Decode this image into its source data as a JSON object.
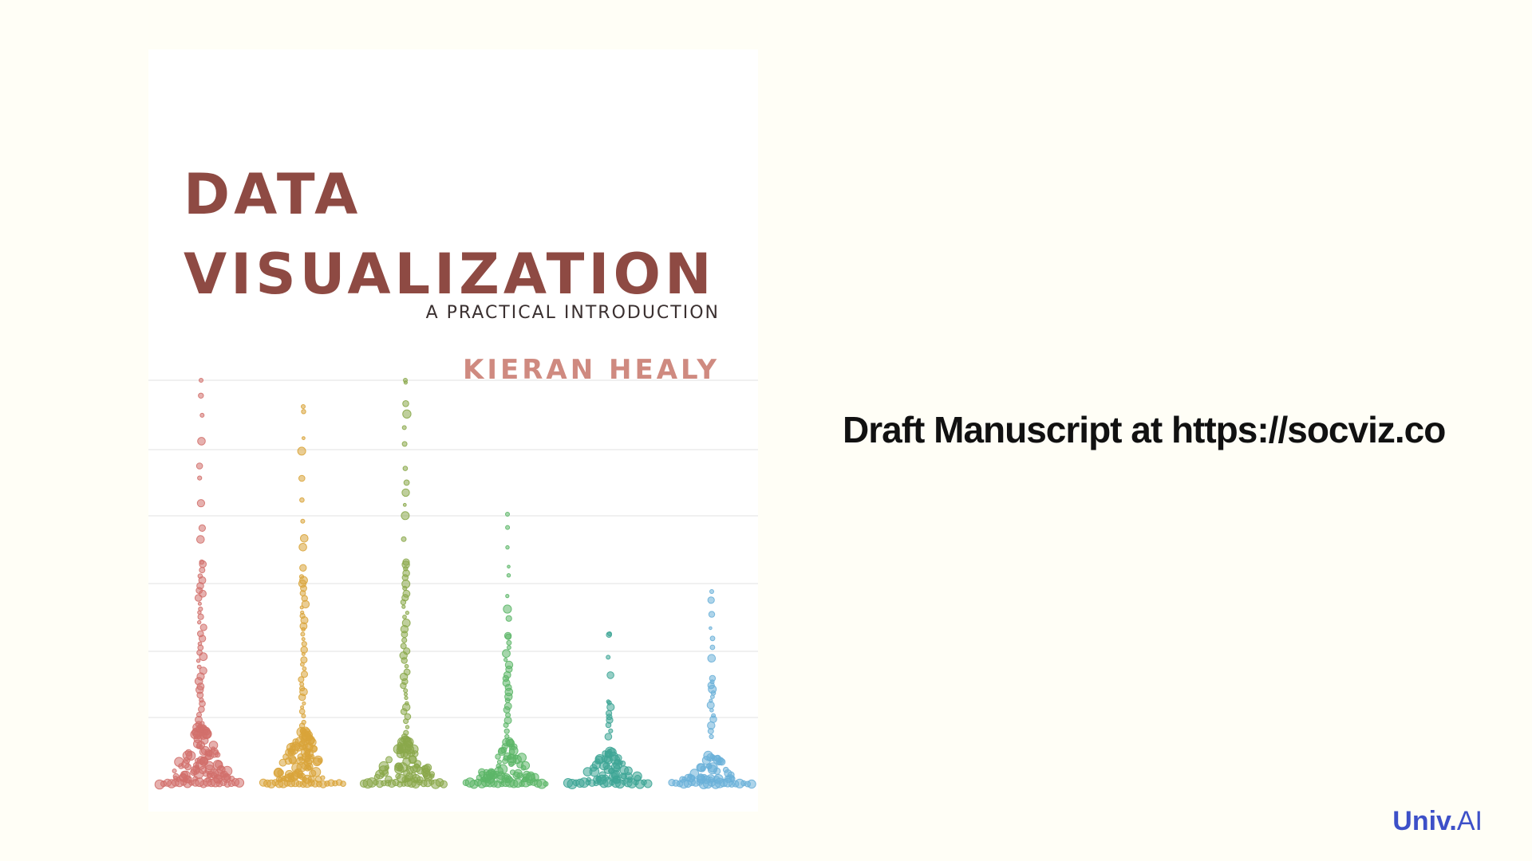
{
  "cover": {
    "title_line1": "DATA",
    "title_line2": "VISUALIZATION",
    "subtitle": "A PRACTICAL INTRODUCTION",
    "author": "KIERAN HEALY",
    "palette": [
      "#d2706c",
      "#d9a43a",
      "#8aa84a",
      "#5cb668",
      "#3ea596",
      "#6ab0d8"
    ],
    "gridline_color": "#ebebeb"
  },
  "caption": "Draft Manuscript at https://socviz.co",
  "brand": {
    "part1": "Univ",
    "part2": ".",
    "part3": "AI",
    "color": "#3d50c8"
  }
}
